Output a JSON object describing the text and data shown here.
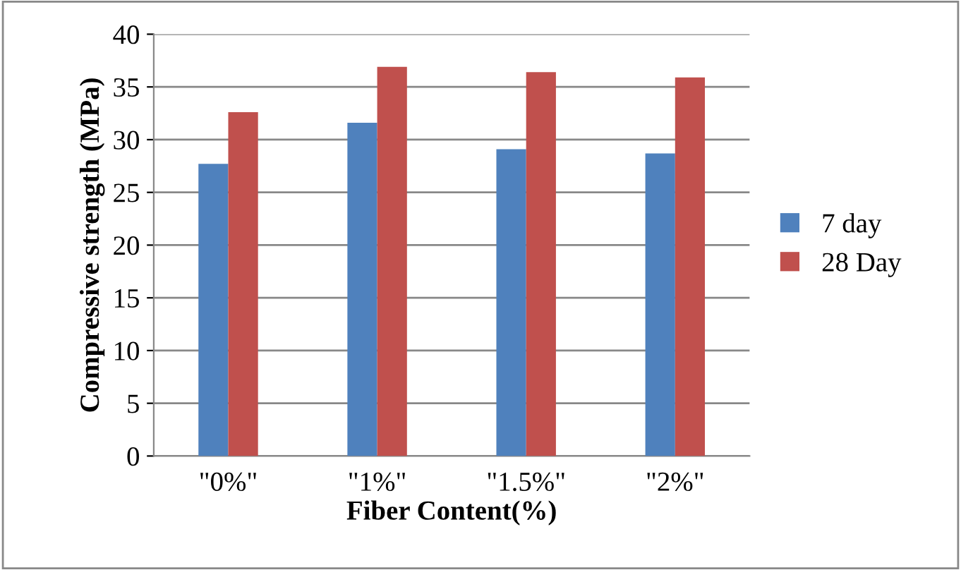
{
  "chart_data": {
    "type": "bar",
    "xlabel": "Fiber Content(%)",
    "ylabel": "Compressive strength (MPa)",
    "categories": [
      "\"0%\"",
      "\"1%\"",
      "\"1.5%\"",
      "\"2%\""
    ],
    "series": [
      {
        "name": "7 day",
        "color": "#4f81bd",
        "values": [
          27.7,
          31.6,
          29.1,
          28.7
        ]
      },
      {
        "name": "28 Day",
        "color": "#c0504d",
        "values": [
          32.6,
          36.9,
          36.4,
          35.9
        ]
      }
    ],
    "ylim": [
      0,
      40
    ],
    "yticks": [
      0,
      5,
      10,
      15,
      20,
      25,
      30,
      35,
      40
    ],
    "grid": "y",
    "legend": "right"
  }
}
